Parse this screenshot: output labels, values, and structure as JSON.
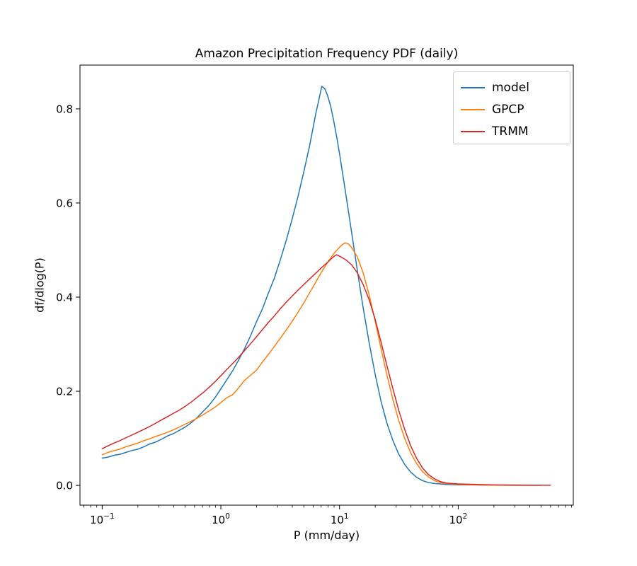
{
  "chart_data": {
    "type": "line",
    "title": "Amazon Precipitation Frequency PDF (daily)",
    "xlabel": "P (mm/day)",
    "ylabel": "df/dlog(P)",
    "x_scale": "log",
    "y_scale": "linear",
    "xlim": [
      0.065,
      933
    ],
    "ylim": [
      -0.042,
      0.893
    ],
    "x_tick_exponents": [
      -1,
      0,
      1,
      2
    ],
    "y_ticks": [
      0.0,
      0.2,
      0.4,
      0.6,
      0.8
    ],
    "grid": false,
    "legend": {
      "position": "upper right",
      "entries": [
        "model",
        "GPCP",
        "TRMM"
      ]
    },
    "series": [
      {
        "name": "model",
        "color": "#1f77b4",
        "points": [
          [
            0.1,
            0.058
          ],
          [
            0.112,
            0.06
          ],
          [
            0.126,
            0.064
          ],
          [
            0.141,
            0.066
          ],
          [
            0.158,
            0.07
          ],
          [
            0.178,
            0.074
          ],
          [
            0.2,
            0.077
          ],
          [
            0.224,
            0.082
          ],
          [
            0.251,
            0.088
          ],
          [
            0.282,
            0.092
          ],
          [
            0.316,
            0.098
          ],
          [
            0.355,
            0.105
          ],
          [
            0.398,
            0.11
          ],
          [
            0.447,
            0.117
          ],
          [
            0.501,
            0.124
          ],
          [
            0.562,
            0.133
          ],
          [
            0.631,
            0.144
          ],
          [
            0.708,
            0.157
          ],
          [
            0.794,
            0.17
          ],
          [
            0.891,
            0.186
          ],
          [
            1.0,
            0.205
          ],
          [
            1.12,
            0.224
          ],
          [
            1.26,
            0.244
          ],
          [
            1.41,
            0.266
          ],
          [
            1.58,
            0.29
          ],
          [
            1.78,
            0.318
          ],
          [
            2.0,
            0.348
          ],
          [
            2.24,
            0.375
          ],
          [
            2.51,
            0.408
          ],
          [
            2.82,
            0.44
          ],
          [
            3.16,
            0.478
          ],
          [
            3.55,
            0.52
          ],
          [
            3.98,
            0.565
          ],
          [
            4.47,
            0.614
          ],
          [
            5.01,
            0.667
          ],
          [
            5.62,
            0.724
          ],
          [
            6.31,
            0.79
          ],
          [
            6.68,
            0.818
          ],
          [
            7.08,
            0.848
          ],
          [
            7.5,
            0.843
          ],
          [
            7.94,
            0.828
          ],
          [
            8.41,
            0.806
          ],
          [
            8.91,
            0.776
          ],
          [
            9.44,
            0.742
          ],
          [
            10.0,
            0.705
          ],
          [
            11.2,
            0.625
          ],
          [
            12.6,
            0.54
          ],
          [
            14.1,
            0.458
          ],
          [
            15.8,
            0.378
          ],
          [
            17.8,
            0.302
          ],
          [
            20.0,
            0.235
          ],
          [
            22.4,
            0.178
          ],
          [
            25.1,
            0.132
          ],
          [
            28.2,
            0.095
          ],
          [
            31.6,
            0.066
          ],
          [
            35.5,
            0.044
          ],
          [
            39.8,
            0.028
          ],
          [
            44.7,
            0.017
          ],
          [
            50.1,
            0.01
          ],
          [
            56.2,
            0.006
          ],
          [
            63.1,
            0.004
          ],
          [
            70.8,
            0.003
          ],
          [
            79.4,
            0.002
          ],
          [
            100,
            0.001
          ],
          [
            141,
            0.001
          ],
          [
            200,
            0.0005
          ],
          [
            316,
            0.0003
          ],
          [
            501,
            0.0002
          ]
        ]
      },
      {
        "name": "GPCP",
        "color": "#ff7f0e",
        "points": [
          [
            0.1,
            0.065
          ],
          [
            0.112,
            0.07
          ],
          [
            0.126,
            0.074
          ],
          [
            0.141,
            0.077
          ],
          [
            0.158,
            0.082
          ],
          [
            0.178,
            0.086
          ],
          [
            0.2,
            0.09
          ],
          [
            0.224,
            0.095
          ],
          [
            0.251,
            0.099
          ],
          [
            0.282,
            0.104
          ],
          [
            0.316,
            0.108
          ],
          [
            0.355,
            0.113
          ],
          [
            0.398,
            0.118
          ],
          [
            0.447,
            0.124
          ],
          [
            0.501,
            0.13
          ],
          [
            0.562,
            0.136
          ],
          [
            0.631,
            0.143
          ],
          [
            0.708,
            0.15
          ],
          [
            0.794,
            0.158
          ],
          [
            0.891,
            0.166
          ],
          [
            1.0,
            0.176
          ],
          [
            1.12,
            0.186
          ],
          [
            1.26,
            0.193
          ],
          [
            1.41,
            0.207
          ],
          [
            1.58,
            0.223
          ],
          [
            1.78,
            0.234
          ],
          [
            2.0,
            0.245
          ],
          [
            2.24,
            0.262
          ],
          [
            2.51,
            0.278
          ],
          [
            2.82,
            0.295
          ],
          [
            3.16,
            0.312
          ],
          [
            3.55,
            0.33
          ],
          [
            3.98,
            0.348
          ],
          [
            4.47,
            0.368
          ],
          [
            5.01,
            0.388
          ],
          [
            5.62,
            0.41
          ],
          [
            6.31,
            0.432
          ],
          [
            7.08,
            0.454
          ],
          [
            7.94,
            0.474
          ],
          [
            8.91,
            0.492
          ],
          [
            10.0,
            0.506
          ],
          [
            10.6,
            0.512
          ],
          [
            11.2,
            0.515
          ],
          [
            11.9,
            0.513
          ],
          [
            12.6,
            0.506
          ],
          [
            14.1,
            0.486
          ],
          [
            15.8,
            0.452
          ],
          [
            17.8,
            0.404
          ],
          [
            20.0,
            0.348
          ],
          [
            22.4,
            0.29
          ],
          [
            25.1,
            0.234
          ],
          [
            28.2,
            0.182
          ],
          [
            31.6,
            0.137
          ],
          [
            35.5,
            0.099
          ],
          [
            39.8,
            0.069
          ],
          [
            44.7,
            0.046
          ],
          [
            50.1,
            0.029
          ],
          [
            56.2,
            0.018
          ],
          [
            63.1,
            0.01
          ],
          [
            70.8,
            0.006
          ],
          [
            79.4,
            0.004
          ],
          [
            100,
            0.002
          ],
          [
            141,
            0.001
          ],
          [
            200,
            0.0005
          ],
          [
            316,
            0.0003
          ],
          [
            501,
            0.0002
          ]
        ]
      },
      {
        "name": "TRMM",
        "color": "#d62728",
        "points": [
          [
            0.1,
            0.078
          ],
          [
            0.112,
            0.084
          ],
          [
            0.126,
            0.09
          ],
          [
            0.141,
            0.095
          ],
          [
            0.158,
            0.101
          ],
          [
            0.178,
            0.107
          ],
          [
            0.2,
            0.113
          ],
          [
            0.224,
            0.119
          ],
          [
            0.251,
            0.125
          ],
          [
            0.282,
            0.132
          ],
          [
            0.316,
            0.139
          ],
          [
            0.355,
            0.146
          ],
          [
            0.398,
            0.153
          ],
          [
            0.447,
            0.16
          ],
          [
            0.501,
            0.168
          ],
          [
            0.562,
            0.177
          ],
          [
            0.631,
            0.187
          ],
          [
            0.708,
            0.197
          ],
          [
            0.794,
            0.208
          ],
          [
            0.891,
            0.22
          ],
          [
            1.0,
            0.233
          ],
          [
            1.12,
            0.246
          ],
          [
            1.26,
            0.259
          ],
          [
            1.41,
            0.272
          ],
          [
            1.58,
            0.286
          ],
          [
            1.78,
            0.301
          ],
          [
            2.0,
            0.316
          ],
          [
            2.24,
            0.331
          ],
          [
            2.51,
            0.346
          ],
          [
            2.82,
            0.36
          ],
          [
            3.16,
            0.375
          ],
          [
            3.55,
            0.389
          ],
          [
            3.98,
            0.402
          ],
          [
            4.47,
            0.415
          ],
          [
            5.01,
            0.427
          ],
          [
            5.62,
            0.439
          ],
          [
            6.31,
            0.451
          ],
          [
            7.08,
            0.463
          ],
          [
            7.94,
            0.474
          ],
          [
            8.91,
            0.486
          ],
          [
            9.44,
            0.49
          ],
          [
            10.0,
            0.487
          ],
          [
            11.2,
            0.48
          ],
          [
            12.6,
            0.469
          ],
          [
            14.1,
            0.452
          ],
          [
            15.8,
            0.427
          ],
          [
            17.8,
            0.394
          ],
          [
            20.0,
            0.352
          ],
          [
            22.4,
            0.304
          ],
          [
            25.1,
            0.254
          ],
          [
            28.2,
            0.205
          ],
          [
            31.6,
            0.159
          ],
          [
            35.5,
            0.118
          ],
          [
            39.8,
            0.084
          ],
          [
            44.7,
            0.057
          ],
          [
            50.1,
            0.037
          ],
          [
            56.2,
            0.023
          ],
          [
            63.1,
            0.014
          ],
          [
            70.8,
            0.008
          ],
          [
            79.4,
            0.005
          ],
          [
            89.1,
            0.004
          ],
          [
            100,
            0.003
          ],
          [
            141,
            0.002
          ],
          [
            200,
            0.001
          ],
          [
            316,
            0.0006
          ],
          [
            447,
            0.0004
          ],
          [
            600,
            0.0003
          ]
        ]
      }
    ]
  }
}
